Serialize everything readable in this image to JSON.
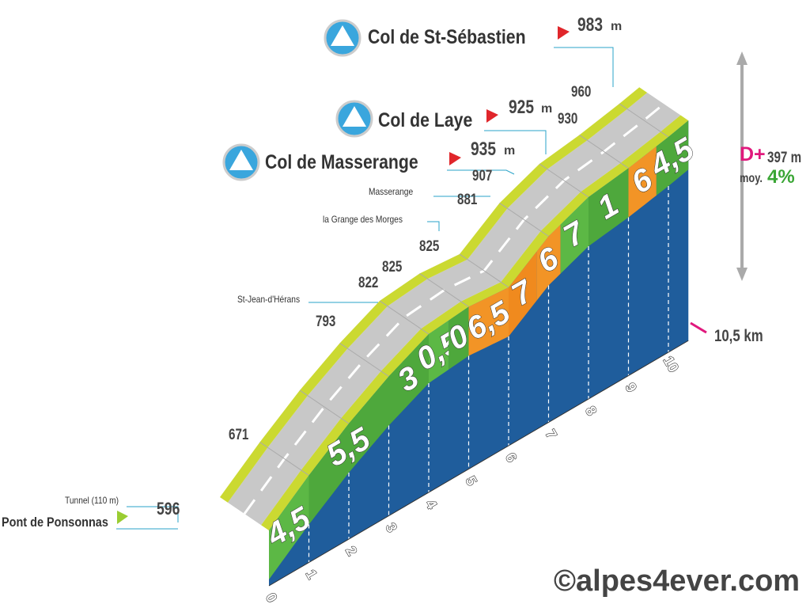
{
  "summits": [
    {
      "name": "Col de St-Sébastien",
      "altitude": 983,
      "unit": "m"
    },
    {
      "name": "Col de Laye",
      "altitude": 925,
      "unit": "m"
    },
    {
      "name": "Col de Masserange",
      "altitude": 935,
      "unit": "m"
    }
  ],
  "start": {
    "name": "Pont de Ponsonnas",
    "altitude": 596
  },
  "waypoints": [
    "Tunnel (110 m)",
    "St-Jean-d'Hérans",
    "la Grange des Morges",
    "Masserange"
  ],
  "altitudes": [
    671,
    793,
    822,
    825,
    825,
    881,
    907,
    930,
    960
  ],
  "gradients": [
    {
      "label": "4,5",
      "color": "#5cb845"
    },
    {
      "label": "5,5",
      "color": "#4ea83c"
    },
    {
      "label": "3",
      "color": "#4ea83c"
    },
    {
      "label": "0,5",
      "color": "#5cb845"
    },
    {
      "label": "0",
      "color": "#4ea83c"
    },
    {
      "label": "6,5",
      "color": "#f29426"
    },
    {
      "label": "7",
      "color": "#f08a1e"
    },
    {
      "label": "6",
      "color": "#f29426"
    },
    {
      "label": "7",
      "color": "#5cb845"
    },
    {
      "label": "1",
      "color": "#4ea83c"
    },
    {
      "label": "6",
      "color": "#f29426"
    },
    {
      "label": "4,5",
      "color": "#4ea83c"
    }
  ],
  "km_marks": [
    0,
    1,
    2,
    3,
    4,
    5,
    6,
    7,
    8,
    9,
    10
  ],
  "distance": "10,5 km",
  "climb": {
    "label": "D+",
    "value": "397 m",
    "avg_label": "moy.",
    "avg": "4%"
  },
  "credit": "©alpes4ever.com"
}
